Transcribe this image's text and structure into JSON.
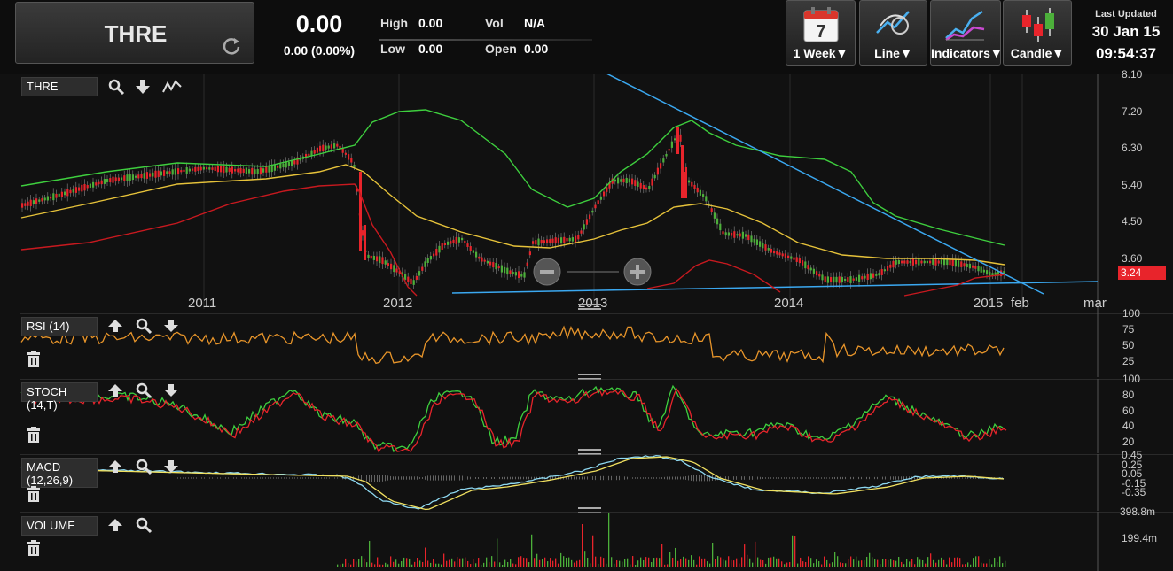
{
  "header": {
    "symbol": "THRE",
    "last_price": "0.00",
    "change": "0.00 (0.00%)",
    "high_label": "High",
    "high_value": "0.00",
    "low_label": "Low",
    "low_value": "0.00",
    "vol_label": "Vol",
    "vol_value": "N/A",
    "open_label": "Open",
    "open_value": "0.00"
  },
  "toolbar": {
    "period_label": "1 Week▼",
    "period_icon_day": "7",
    "line_label": "Line▼",
    "indicators_label": "Indicators▼",
    "candle_label": "Candle▼"
  },
  "updated": {
    "title": "Last Updated",
    "date": "30 Jan 15",
    "time": "09:54:37"
  },
  "colors": {
    "up": "#4caf3a",
    "down": "#e8242b",
    "bollinger": "#3ecf3e",
    "ma_short": "#e6c23a",
    "ma_long": "#c8191f",
    "trendline": "#3ba8f0",
    "rsi": "#e8952a",
    "macd_line": "#8ed8f0",
    "signal_line": "#f0e060"
  },
  "main_chart": {
    "label": "THRE",
    "y_ticks": [
      "8.10",
      "7.20",
      "6.30",
      "5.40",
      "4.50",
      "3.60"
    ],
    "last_price_tag": "3.24",
    "x_labels": [
      "2011",
      "2012",
      "2013",
      "2014",
      "2015",
      "feb",
      "mar"
    ]
  },
  "rsi_panel": {
    "label": "RSI (14)",
    "y_ticks": [
      "100",
      "75",
      "50",
      "25"
    ]
  },
  "stoch_panel": {
    "label": "STOCH (14,T)",
    "y_ticks": [
      "100",
      "80",
      "60",
      "40",
      "20"
    ]
  },
  "macd_panel": {
    "label_line1": "MACD",
    "label_line2": "(12,26,9)",
    "y_ticks": [
      "0.45",
      "0.25",
      "0.05",
      "-0.15",
      "-0.35"
    ]
  },
  "volume_panel": {
    "label": "VOLUME",
    "y_ticks": [
      "398.8m",
      "199.4m"
    ]
  }
}
